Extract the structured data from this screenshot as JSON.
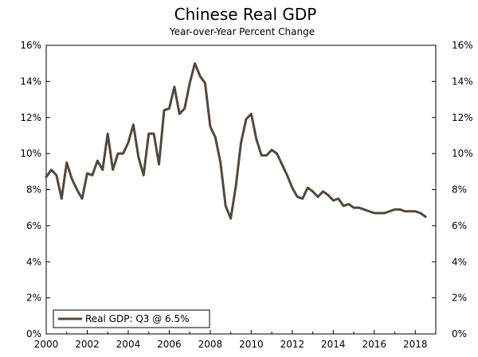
{
  "chart_data": {
    "type": "line",
    "title": "Chinese Real GDP",
    "subtitle": "Year-over-Year Percent Change",
    "xlabel": "",
    "ylabel": "",
    "xlim": [
      2000,
      2019.0
    ],
    "ylim": [
      0,
      16
    ],
    "x_ticks": [
      2000,
      2002,
      2004,
      2006,
      2008,
      2010,
      2012,
      2014,
      2016,
      2018
    ],
    "y_ticks": [
      0,
      2,
      4,
      6,
      8,
      10,
      12,
      14,
      16
    ],
    "y_tick_labels": [
      "0%",
      "2%",
      "4%",
      "6%",
      "8%",
      "10%",
      "12%",
      "14%",
      "16%"
    ],
    "legend": {
      "position": "bottom-left",
      "label": "Real GDP: Q3 @ 6.5%"
    },
    "series": [
      {
        "name": "Real GDP: Q3 @ 6.5%",
        "color": "#54473a",
        "x": [
          2000.0,
          2000.25,
          2000.5,
          2000.75,
          2001.0,
          2001.25,
          2001.5,
          2001.75,
          2002.0,
          2002.25,
          2002.5,
          2002.75,
          2003.0,
          2003.25,
          2003.5,
          2003.75,
          2004.0,
          2004.25,
          2004.5,
          2004.75,
          2005.0,
          2005.25,
          2005.5,
          2005.75,
          2006.0,
          2006.25,
          2006.5,
          2006.75,
          2007.0,
          2007.25,
          2007.5,
          2007.75,
          2008.0,
          2008.25,
          2008.5,
          2008.75,
          2009.0,
          2009.25,
          2009.5,
          2009.75,
          2010.0,
          2010.25,
          2010.5,
          2010.75,
          2011.0,
          2011.25,
          2011.5,
          2011.75,
          2012.0,
          2012.25,
          2012.5,
          2012.75,
          2013.0,
          2013.25,
          2013.5,
          2013.75,
          2014.0,
          2014.25,
          2014.5,
          2014.75,
          2015.0,
          2015.25,
          2015.5,
          2015.75,
          2016.0,
          2016.25,
          2016.5,
          2016.75,
          2017.0,
          2017.25,
          2017.5,
          2017.75,
          2018.0,
          2018.25,
          2018.5
        ],
        "values": [
          8.7,
          9.1,
          8.8,
          7.5,
          9.5,
          8.6,
          8.0,
          7.5,
          8.9,
          8.8,
          9.6,
          9.1,
          11.1,
          9.1,
          10.0,
          10.0,
          10.6,
          11.6,
          9.8,
          8.8,
          11.1,
          11.1,
          9.4,
          12.4,
          12.5,
          13.7,
          12.2,
          12.5,
          13.9,
          15.0,
          14.3,
          13.9,
          11.5,
          10.9,
          9.5,
          7.1,
          6.4,
          8.2,
          10.6,
          11.9,
          12.2,
          10.8,
          9.9,
          9.9,
          10.2,
          10.0,
          9.4,
          8.8,
          8.1,
          7.6,
          7.5,
          8.1,
          7.9,
          7.6,
          7.9,
          7.7,
          7.4,
          7.5,
          7.1,
          7.2,
          7.0,
          7.0,
          6.9,
          6.8,
          6.7,
          6.7,
          6.7,
          6.8,
          6.9,
          6.9,
          6.8,
          6.8,
          6.8,
          6.7,
          6.5
        ]
      }
    ]
  }
}
